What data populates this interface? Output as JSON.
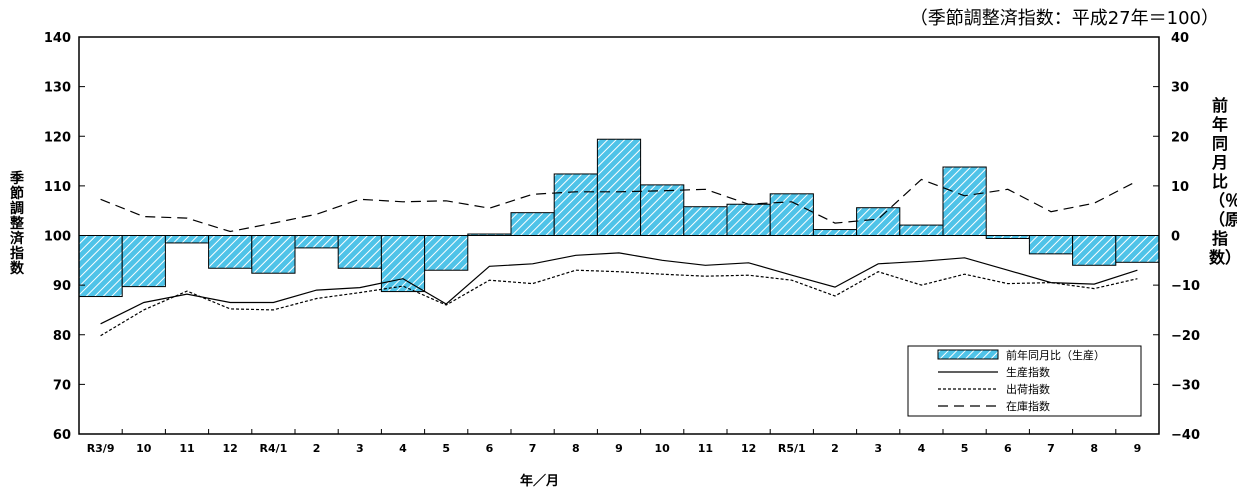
{
  "chart_data": {
    "type": "bar+line",
    "unit_note": "（季節調整済指数：平成27年＝100）",
    "ylabel_left": "季節調整済指数",
    "ylabel_right": "前年同月比（％）（原指数）",
    "xlabel": "年／月",
    "categories": [
      "R3/9",
      "10",
      "11",
      "12",
      "R4/1",
      "2",
      "3",
      "4",
      "5",
      "6",
      "7",
      "8",
      "9",
      "10",
      "11",
      "12",
      "R5/1",
      "2",
      "3",
      "4",
      "5",
      "6",
      "7",
      "8",
      "9"
    ],
    "y_left": {
      "min": 60,
      "max": 140,
      "step": 10,
      "ticks": [
        "60",
        "70",
        "80",
        "90",
        "100",
        "110",
        "120",
        "130",
        "140"
      ]
    },
    "y_right": {
      "min": -40,
      "max": 40,
      "step": 10,
      "ticks": [
        "−40",
        "−30",
        "−20",
        "−10",
        "0",
        "10",
        "20",
        "30",
        "40"
      ]
    },
    "bars": {
      "name": "前年同月比（生産）",
      "axis": "right",
      "values": [
        -12.3,
        -10.3,
        -1.5,
        -6.6,
        -7.6,
        -2.5,
        -6.6,
        -11.3,
        -7.0,
        0.3,
        4.6,
        12.4,
        19.4,
        10.2,
        5.8,
        6.3,
        8.4,
        1.2,
        5.6,
        2.1,
        13.8,
        -0.6,
        -3.7,
        -6.0,
        -5.4
      ],
      "color": "#4fc3e8"
    },
    "series": [
      {
        "name": "生産指数",
        "style": "solid",
        "values": [
          82.2,
          86.5,
          88.2,
          86.5,
          86.5,
          89.0,
          89.5,
          91.3,
          86.2,
          93.8,
          94.3,
          96.0,
          96.5,
          95.0,
          94.0,
          94.5,
          92.0,
          89.6,
          94.3,
          94.8,
          95.5,
          93.0,
          90.5,
          90.2,
          93.0
        ]
      },
      {
        "name": "出荷指数",
        "style": "dotted",
        "values": [
          79.8,
          85.0,
          88.8,
          85.2,
          85.0,
          87.3,
          88.5,
          89.8,
          86.0,
          91.0,
          90.3,
          93.0,
          92.7,
          92.2,
          91.8,
          92.0,
          91.0,
          87.8,
          92.7,
          90.0,
          92.2,
          90.3,
          90.5,
          89.3,
          91.3
        ]
      },
      {
        "name": "在庫指数",
        "style": "dashed",
        "values": [
          107.3,
          103.8,
          103.5,
          100.8,
          102.5,
          104.3,
          107.3,
          106.8,
          107.0,
          105.5,
          108.3,
          108.8,
          108.8,
          109.0,
          109.3,
          106.3,
          106.8,
          102.5,
          103.3,
          111.3,
          108.0,
          109.3,
          104.8,
          106.5,
          111.0
        ]
      }
    ],
    "legend_position": "bottom-right",
    "grid": false
  }
}
